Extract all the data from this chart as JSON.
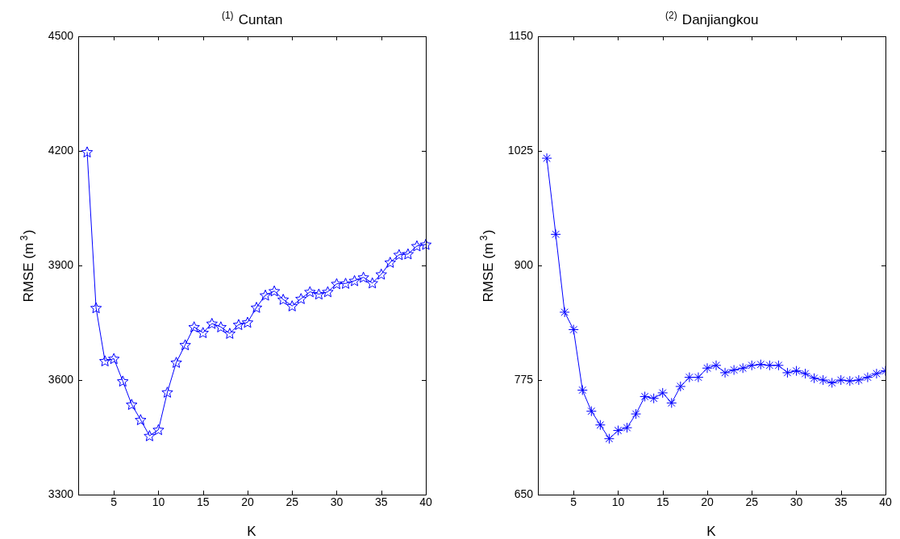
{
  "chart_data": [
    {
      "type": "line",
      "title": "$^{(1)}$ Cuntan",
      "xlabel": "K",
      "ylabel": "RMSE (m$^{3}$)",
      "marker": "star",
      "line_style": "solid",
      "grid": false,
      "legend": false,
      "x": [
        2,
        3,
        4,
        5,
        6,
        7,
        8,
        9,
        10,
        11,
        12,
        13,
        14,
        15,
        16,
        17,
        18,
        19,
        20,
        21,
        22,
        23,
        24,
        25,
        26,
        27,
        28,
        29,
        30,
        31,
        32,
        33,
        34,
        35,
        36,
        37,
        38,
        39,
        40
      ],
      "series": [
        {
          "color": "#0000ff",
          "values": [
            4197,
            3789,
            3650,
            3656,
            3597,
            3536,
            3496,
            3454,
            3470,
            3568,
            3646,
            3692,
            3739,
            3724,
            3748,
            3739,
            3722,
            3745,
            3751,
            3790,
            3822,
            3833,
            3811,
            3794,
            3813,
            3831,
            3825,
            3831,
            3852,
            3853,
            3860,
            3869,
            3854,
            3877,
            3908,
            3928,
            3930,
            3951,
            3955
          ]
        }
      ],
      "xlim": [
        1,
        40
      ],
      "xticks": [
        5,
        10,
        15,
        20,
        25,
        30,
        35,
        40
      ],
      "ylim": [
        3300,
        4500
      ],
      "yticks": [
        3300,
        3600,
        3900,
        4200,
        4500
      ]
    },
    {
      "type": "line",
      "title": "$^{(2)}$ Danjiangkou",
      "xlabel": "K",
      "ylabel": "RMSE (m$^{3}$)",
      "marker": "cross",
      "line_style": "solid",
      "grid": false,
      "legend": false,
      "x": [
        2,
        3,
        4,
        5,
        6,
        7,
        8,
        9,
        10,
        11,
        12,
        13,
        14,
        15,
        16,
        17,
        18,
        19,
        20,
        21,
        22,
        23,
        24,
        25,
        26,
        27,
        28,
        29,
        30,
        31,
        32,
        33,
        34,
        35,
        36,
        37,
        38,
        39,
        40
      ],
      "series": [
        {
          "color": "#0000ff",
          "values": [
            1017,
            934,
            849,
            830,
            764,
            741,
            726,
            711,
            720,
            723,
            738,
            757,
            755,
            761,
            750,
            768,
            778,
            778,
            788,
            791,
            783,
            786,
            788,
            791,
            792,
            791,
            791,
            783,
            785,
            782,
            777,
            775,
            772,
            775,
            774,
            775,
            778,
            782,
            785
          ]
        }
      ],
      "xlim": [
        1,
        40
      ],
      "xticks": [
        5,
        10,
        15,
        20,
        25,
        30,
        35,
        40
      ],
      "ylim": [
        650,
        1150
      ],
      "yticks": [
        650,
        775,
        900,
        1025,
        1150
      ]
    }
  ]
}
